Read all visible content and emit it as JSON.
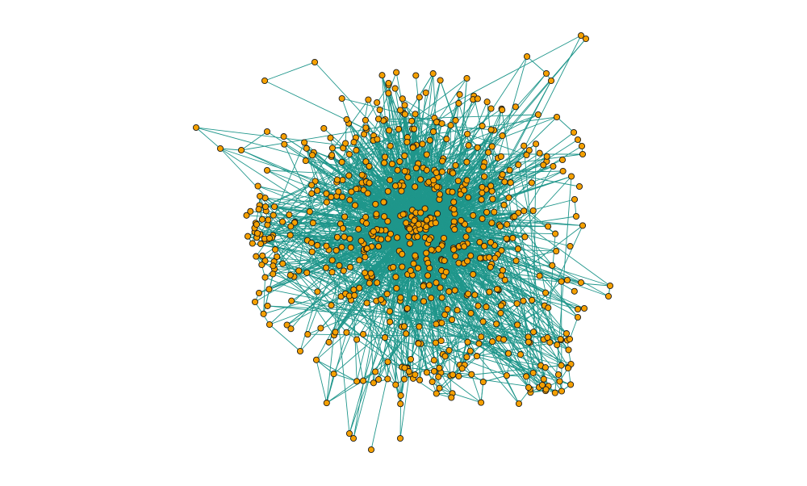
{
  "figure": {
    "type": "network-graph",
    "layout": "force-directed",
    "style": {
      "node_fill": "#f5a000",
      "node_stroke": "#1a1a1a",
      "edge_color": "#1f968b",
      "background": "#ffffff"
    },
    "description_counts": {
      "approx_nodes": 600,
      "approx_edges": 2400
    },
    "random_seed": 20240517
  }
}
